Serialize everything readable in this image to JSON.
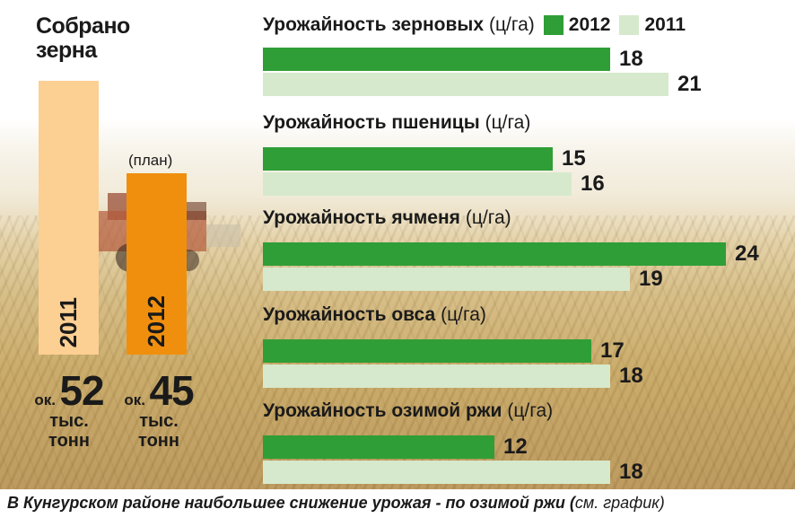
{
  "colors": {
    "bar_2012": "#2f9e37",
    "bar_2011": "#d6e9cc",
    "pillar_2011": "#fccf93",
    "pillar_2012": "#f08f0e"
  },
  "left_panel": {
    "title_line1": "Собрано",
    "title_line2": "зерна",
    "plan_note": "(план)",
    "pillars": [
      {
        "year": "2011",
        "ok": "ок.",
        "amount": "52",
        "unit_line1": "тыс.",
        "unit_line2": "тонн"
      },
      {
        "year": "2012",
        "ok": "ок.",
        "amount": "45",
        "unit_line1": "тыс.",
        "unit_line2": "тонн"
      }
    ]
  },
  "legend": {
    "title": "Урожайность зерновых",
    "unit": "(ц/га)",
    "label_2012": "2012",
    "label_2011": "2011"
  },
  "chart_data": {
    "type": "bar",
    "orientation": "horizontal",
    "unit": "(ц/га)",
    "categories": [
      "Урожайность зерновых",
      "Урожайность пшеницы",
      "Урожайность ячменя",
      "Урожайность овса",
      "Урожайность озимой ржи"
    ],
    "series": [
      {
        "name": "2012",
        "values": [
          18,
          15,
          24,
          17,
          12
        ]
      },
      {
        "name": "2011",
        "values": [
          21,
          16,
          19,
          18,
          18
        ]
      }
    ],
    "totals": {
      "title": "Собрано зерна",
      "categories": [
        "2011",
        "2012"
      ],
      "values": [
        52,
        45
      ],
      "unit": "тыс. тонн",
      "note_2012": "(план)"
    }
  },
  "caption": {
    "main": "В Кунгурском районе наибольшее снижение  урожая - по озимой ржи (",
    "tail": "см. график)"
  }
}
